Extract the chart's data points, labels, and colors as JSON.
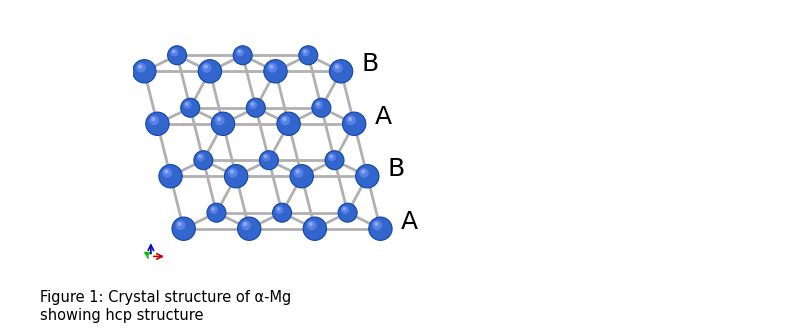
{
  "figure_caption": "Figure 1: Crystal structure of α-Mg\nshowing hcp structure",
  "caption_fontsize": 10.5,
  "background_color": "#ffffff",
  "atom_color_main": "#3366cc",
  "atom_color_light": "#5588ee",
  "atom_color_highlight": "#7799ff",
  "atom_edge_color": "#1144aa",
  "bond_color": "#b0b0b0",
  "bond_lw": 2.0,
  "label_color": "#000000",
  "label_fontsize": 18,
  "figsize": [
    7.9,
    3.36
  ],
  "dpi": 100,
  "layer_types": [
    "A",
    "B",
    "A",
    "B"
  ],
  "axis_green": "#00bb00",
  "axis_red": "#cc0000",
  "axis_blue": "#0000cc"
}
